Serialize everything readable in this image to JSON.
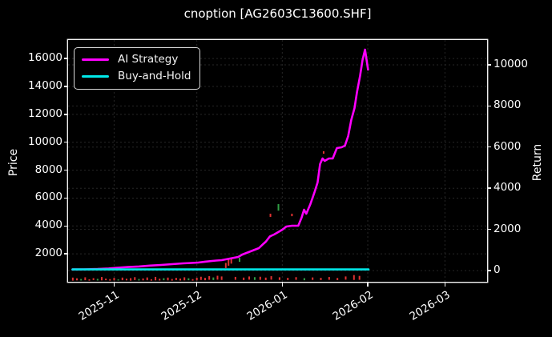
{
  "figure": {
    "bg_color": "#000000",
    "text_color": "#ffffff",
    "grid_color": "#262626",
    "frame_color": "#f0f0f0"
  },
  "legend": {
    "items": [
      {
        "label": "AI Strategy",
        "color": "#ff00ff"
      },
      {
        "label": "Buy-and-Hold",
        "color": "#00e8e8"
      }
    ]
  },
  "chart_data": {
    "type": "line",
    "title": "cnoption [AG2603C13600.SHF]",
    "ylabel_left": "Price",
    "ylabel_right": "Return",
    "grid": true,
    "legend_position": "upper-left",
    "x_axis": {
      "unit": "days-from-2025-10-16",
      "domain_days": [
        -0.7,
        151.3
      ],
      "ticks": [
        {
          "label": "2025-11",
          "day": 16
        },
        {
          "label": "2025-12",
          "day": 46
        },
        {
          "label": "2026-01",
          "day": 77
        },
        {
          "label": "2026-02",
          "day": 108
        },
        {
          "label": "2026-03",
          "day": 136
        }
      ]
    },
    "price_axis": {
      "domain": [
        0,
        17330
      ],
      "ticks": [
        2000,
        4000,
        6000,
        8000,
        10000,
        12000,
        14000,
        16000
      ]
    },
    "return_axis": {
      "domain": [
        -545,
        11206
      ],
      "ticks": [
        0,
        2000,
        4000,
        6000,
        8000,
        10000
      ]
    },
    "series": [
      {
        "name": "AI Strategy",
        "axis": "return",
        "color": "#ff00ff",
        "width": 2.6,
        "points": [
          [
            0.9,
            55
          ],
          [
            5,
            60
          ],
          [
            10,
            75
          ],
          [
            14,
            100
          ],
          [
            17,
            135
          ],
          [
            21,
            170
          ],
          [
            25,
            200
          ],
          [
            29,
            240
          ],
          [
            33,
            272
          ],
          [
            37,
            310
          ],
          [
            41,
            350
          ],
          [
            44,
            370
          ],
          [
            46.5,
            390
          ],
          [
            49,
            430
          ],
          [
            51.5,
            467
          ],
          [
            53,
            485
          ],
          [
            55,
            506
          ],
          [
            58,
            584
          ],
          [
            61,
            661
          ],
          [
            62.5,
            778
          ],
          [
            64,
            856
          ],
          [
            65.5,
            934
          ],
          [
            67,
            1012
          ],
          [
            68.5,
            1090
          ],
          [
            70,
            1284
          ],
          [
            71,
            1401
          ],
          [
            72.5,
            1660
          ],
          [
            74,
            1750
          ],
          [
            75.5,
            1868
          ],
          [
            77,
            1984
          ],
          [
            78.5,
            2140
          ],
          [
            80.5,
            2180
          ],
          [
            82.8,
            2180
          ],
          [
            84,
            2568
          ],
          [
            84.9,
            2957
          ],
          [
            85.7,
            2762
          ],
          [
            87.2,
            3229
          ],
          [
            88.7,
            3813
          ],
          [
            89.8,
            4280
          ],
          [
            90.7,
            5175
          ],
          [
            91.6,
            5447
          ],
          [
            92.4,
            5330
          ],
          [
            93.9,
            5447
          ],
          [
            95.3,
            5447
          ],
          [
            96.8,
            5953
          ],
          [
            98.5,
            5992
          ],
          [
            99.7,
            6070
          ],
          [
            100.9,
            6537
          ],
          [
            102,
            7315
          ],
          [
            103.2,
            7899
          ],
          [
            104.1,
            8677
          ],
          [
            105.2,
            9455
          ],
          [
            106.1,
            10233
          ],
          [
            107,
            10739
          ],
          [
            107.6,
            10233
          ],
          [
            108.1,
            9766
          ]
        ]
      },
      {
        "name": "Buy-and-Hold",
        "axis": "return",
        "color": "#00e8e8",
        "width": 2.6,
        "points": [
          [
            0.9,
            55
          ],
          [
            108.3,
            55
          ]
        ]
      }
    ],
    "candles": {
      "axis": "price",
      "up_color": "#e03131",
      "down_color": "#2f9e44",
      "items": [
        [
          1,
          80,
          300,
          "r"
        ],
        [
          2.5,
          100,
          250,
          "r"
        ],
        [
          4,
          90,
          200,
          "g"
        ],
        [
          5.5,
          110,
          320,
          "r"
        ],
        [
          7,
          80,
          180,
          "r"
        ],
        [
          8.5,
          120,
          260,
          "r"
        ],
        [
          10,
          90,
          210,
          "g"
        ],
        [
          11.5,
          100,
          340,
          "r"
        ],
        [
          13,
          110,
          230,
          "r"
        ],
        [
          14.5,
          80,
          190,
          "r"
        ],
        [
          16,
          100,
          280,
          "r"
        ],
        [
          17.5,
          90,
          170,
          "g"
        ],
        [
          19,
          110,
          300,
          "r"
        ],
        [
          20.5,
          100,
          220,
          "r"
        ],
        [
          22,
          80,
          260,
          "r"
        ],
        [
          23.5,
          120,
          330,
          "r"
        ],
        [
          25,
          90,
          200,
          "g"
        ],
        [
          26.5,
          100,
          240,
          "r"
        ],
        [
          28,
          110,
          310,
          "r"
        ],
        [
          29.5,
          80,
          180,
          "r"
        ],
        [
          31,
          100,
          350,
          "r"
        ],
        [
          32.5,
          90,
          220,
          "r"
        ],
        [
          34,
          110,
          260,
          "g"
        ],
        [
          35.5,
          100,
          300,
          "r"
        ],
        [
          37,
          80,
          200,
          "r"
        ],
        [
          38.5,
          120,
          280,
          "r"
        ],
        [
          40,
          90,
          230,
          "r"
        ],
        [
          41.5,
          100,
          320,
          "r"
        ],
        [
          43,
          110,
          250,
          "g"
        ],
        [
          44.5,
          80,
          190,
          "r"
        ],
        [
          46,
          100,
          290,
          "r"
        ],
        [
          47.5,
          130,
          360,
          "r"
        ],
        [
          49,
          110,
          280,
          "r"
        ],
        [
          50.5,
          140,
          400,
          "r"
        ],
        [
          52,
          120,
          310,
          "g"
        ],
        [
          53.5,
          150,
          430,
          "r"
        ],
        [
          55,
          130,
          380,
          "r"
        ],
        [
          56.5,
          980,
          1350,
          "r"
        ],
        [
          57.5,
          1150,
          1600,
          "r"
        ],
        [
          58.5,
          1300,
          1720,
          "r"
        ],
        [
          60,
          140,
          350,
          "r"
        ],
        [
          61.5,
          1430,
          1720,
          "g"
        ],
        [
          63,
          120,
          300,
          "r"
        ],
        [
          65,
          150,
          380,
          "r"
        ],
        [
          67,
          130,
          330,
          "g"
        ],
        [
          69,
          140,
          360,
          "r"
        ],
        [
          71,
          120,
          300,
          "r"
        ],
        [
          72.7,
          4650,
          4880,
          "r"
        ],
        [
          73,
          150,
          400,
          "r"
        ],
        [
          75.6,
          5100,
          5570,
          "g"
        ],
        [
          76,
          130,
          320,
          "r"
        ],
        [
          79,
          120,
          280,
          "r"
        ],
        [
          80.5,
          4700,
          4880,
          "r"
        ],
        [
          82,
          140,
          330,
          "r"
        ],
        [
          85,
          110,
          260,
          "g"
        ],
        [
          88,
          130,
          310,
          "r"
        ],
        [
          91,
          120,
          280,
          "r"
        ],
        [
          92,
          9180,
          9360,
          "r"
        ],
        [
          94,
          140,
          340,
          "r"
        ],
        [
          97,
          120,
          270,
          "r"
        ],
        [
          100,
          150,
          380,
          "r"
        ],
        [
          103,
          130,
          480,
          "r"
        ],
        [
          105,
          140,
          420,
          "r"
        ]
      ]
    }
  }
}
